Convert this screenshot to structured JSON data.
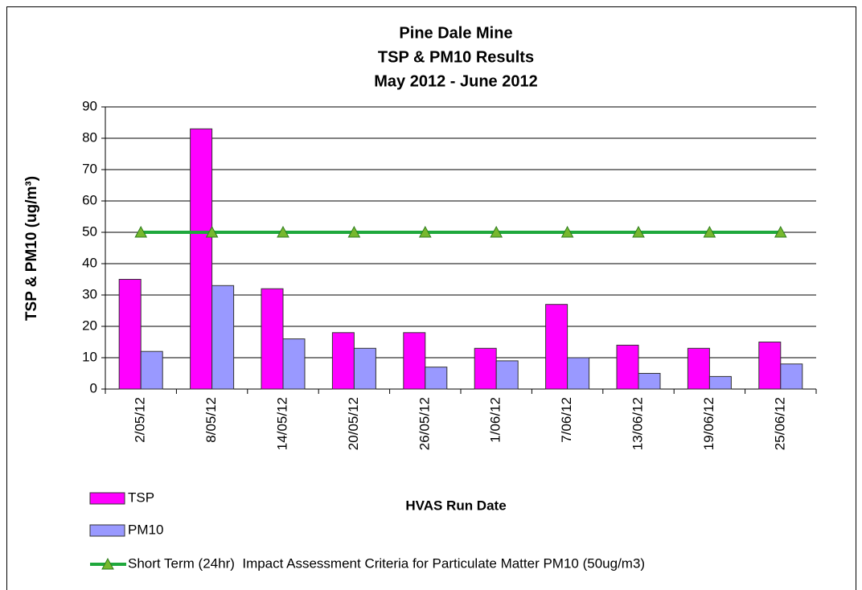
{
  "chart_data": {
    "type": "bar",
    "title": [
      "Pine Dale Mine",
      "TSP & PM10 Results",
      "May 2012 - June 2012"
    ],
    "x_label": "HVAS Run Date",
    "y_label": "TSP & PM10 (ug/m³)",
    "categories": [
      "2/05/12",
      "8/05/12",
      "14/05/12",
      "20/05/12",
      "26/05/12",
      "1/06/12",
      "7/06/12",
      "13/06/12",
      "19/06/12",
      "25/06/12"
    ],
    "series": [
      {
        "name": "TSP",
        "type": "bar",
        "color": "#ff00ff",
        "values": [
          35,
          83,
          32,
          18,
          18,
          13,
          27,
          14,
          13,
          15
        ]
      },
      {
        "name": "PM10",
        "type": "bar",
        "color": "#9999ff",
        "values": [
          12,
          33,
          16,
          13,
          7,
          9,
          10,
          5,
          4,
          8
        ]
      },
      {
        "name": "Short Term (24hr)  Impact Assessment Criteria for Particulate Matter PM10 (50ug/m3)",
        "type": "line",
        "color": "#1fa83c",
        "marker_color": "#77b82e",
        "values": [
          50,
          50,
          50,
          50,
          50,
          50,
          50,
          50,
          50,
          50
        ]
      }
    ],
    "ylim": [
      0,
      90
    ],
    "yticks": [
      0,
      10,
      20,
      30,
      40,
      50,
      60,
      70,
      80,
      90
    ],
    "grid": true,
    "legend": "bottom-left"
  }
}
